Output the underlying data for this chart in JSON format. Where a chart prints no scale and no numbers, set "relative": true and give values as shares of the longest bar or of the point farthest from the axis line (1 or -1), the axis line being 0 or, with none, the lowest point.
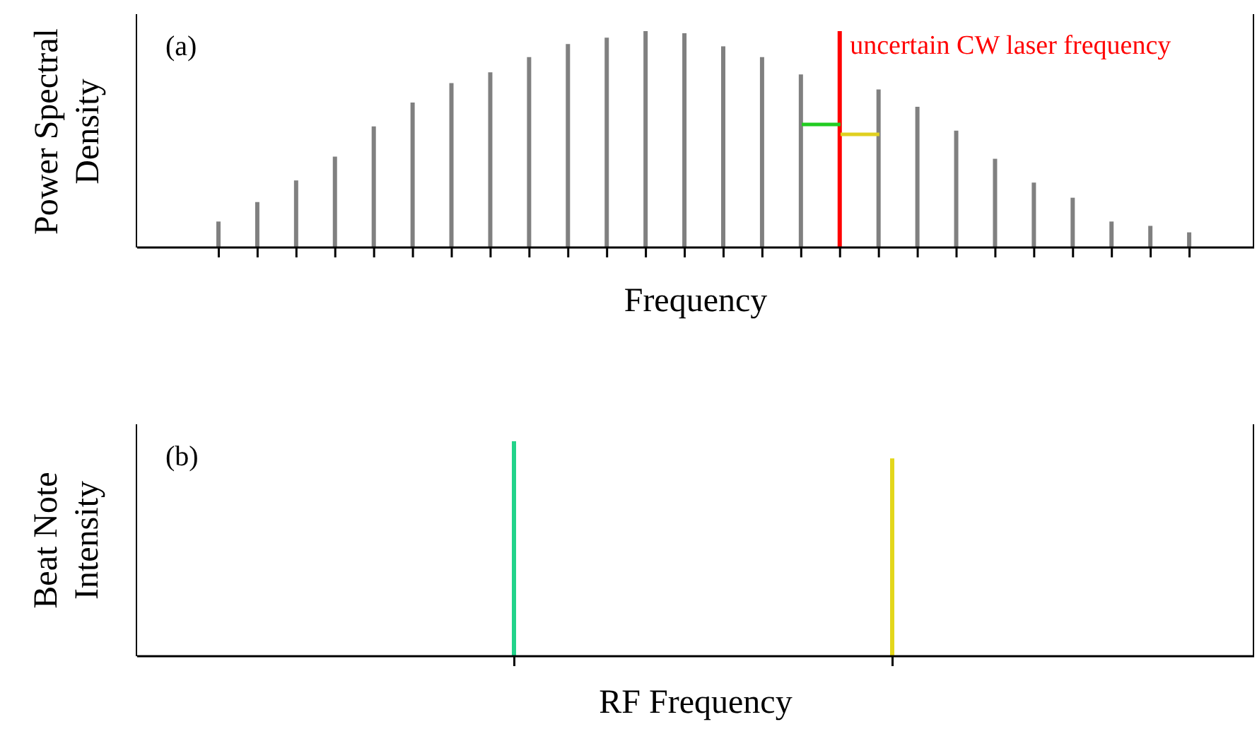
{
  "chart_data": [
    {
      "type": "bar",
      "xlabel": "Frequency",
      "ylabel": "Power Spectral Density",
      "relative": true,
      "annotations": [
        "(a)",
        "uncertain CW laser frequency"
      ],
      "categories": [
        null,
        null,
        null,
        null,
        null,
        null,
        null,
        null,
        null,
        null,
        null,
        null,
        null,
        null,
        null,
        null,
        null,
        null,
        null,
        null,
        null,
        null,
        null,
        null,
        null,
        null
      ],
      "values": [
        0.12,
        0.21,
        0.31,
        0.42,
        0.56,
        0.67,
        0.76,
        0.81,
        0.88,
        0.94,
        0.97,
        1,
        0.99,
        0.93,
        0.88,
        0.8,
        1,
        0.73,
        0.65,
        0.54,
        0.41,
        0.3,
        0.23,
        0.12,
        0.1,
        0.07
      ],
      "colors": [
        "#808080",
        "#808080",
        "#808080",
        "#808080",
        "#808080",
        "#808080",
        "#808080",
        "#808080",
        "#808080",
        "#808080",
        "#808080",
        "#808080",
        "#808080",
        "#808080",
        "#808080",
        "#808080",
        "#ff0000",
        "#808080",
        "#808080",
        "#808080",
        "#808080",
        "#808080",
        "#808080",
        "#808080",
        "#808080",
        "#808080"
      ]
    },
    {
      "type": "bar",
      "xlabel": "RF Frequency",
      "ylabel": "Beat Note Intensity",
      "relative": true,
      "annotations": [
        "(b)"
      ],
      "categories": [
        null,
        null
      ],
      "values": [
        1,
        0.92
      ],
      "colors": [
        "#22d38a",
        "#e3d71c"
      ]
    }
  ]
}
